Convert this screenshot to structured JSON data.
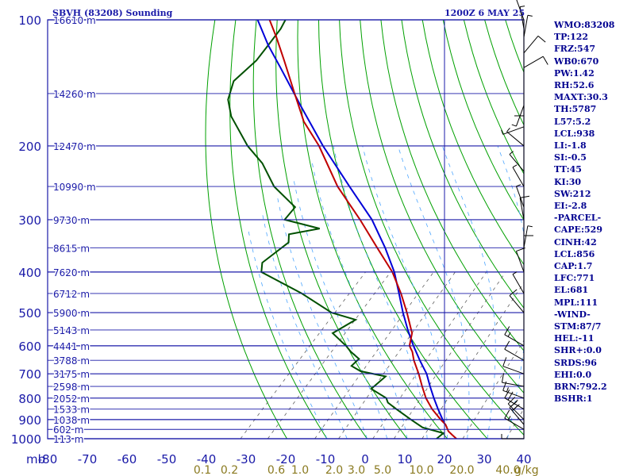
{
  "header": {
    "station": "SBVH (83208) Sounding",
    "time": "1200Z  6 MAY 25"
  },
  "colors": {
    "frame": "#1a1aa8",
    "isotherm": "#00a000",
    "temperature": "#c00000",
    "dewpoint": "#005000",
    "parcel": "#0000d8",
    "moist_adiabat": "#4da6ff",
    "mixing_ratio": "#606060",
    "axis_text": "#1a1aa8",
    "mixing_text": "#8a7a20",
    "index_text": "#000090"
  },
  "chart_data": {
    "type": "skew-t",
    "pressure_levels": [
      100,
      200,
      300,
      400,
      500,
      600,
      700,
      800,
      900,
      1000
    ],
    "pressure_unit_label": "mb",
    "temperature_ticks": [
      -80,
      -70,
      -60,
      -50,
      -40,
      -30,
      -20,
      -10,
      0,
      10,
      20,
      30,
      40
    ],
    "mixing_ratio_labels": [
      "0.1",
      "0.2",
      "0.6",
      "1.0",
      "2.0",
      "3.0",
      "5.0",
      "10.0",
      "20.0",
      "40.0"
    ],
    "mixing_ratio_unit": "g/kg",
    "height_labels": [
      {
        "p": 100,
        "text": "16610 m"
      },
      {
        "p": 150,
        "text": "14260 m"
      },
      {
        "p": 200,
        "text": "12470 m"
      },
      {
        "p": 250,
        "text": "10990 m"
      },
      {
        "p": 300,
        "text": "9730 m"
      },
      {
        "p": 350,
        "text": "8615 m"
      },
      {
        "p": 400,
        "text": "7620 m"
      },
      {
        "p": 450,
        "text": "6712 m"
      },
      {
        "p": 500,
        "text": "5900 m"
      },
      {
        "p": 550,
        "text": "5143 m"
      },
      {
        "p": 600,
        "text": "4441 m"
      },
      {
        "p": 650,
        "text": "3788 m"
      },
      {
        "p": 700,
        "text": "3175 m"
      },
      {
        "p": 750,
        "text": "2598 m"
      },
      {
        "p": 800,
        "text": "2052 m"
      },
      {
        "p": 850,
        "text": "1533 m"
      },
      {
        "p": 900,
        "text": "1038 m"
      },
      {
        "p": 950,
        "text": "602 m"
      },
      {
        "p": 1000,
        "text": "113 m"
      }
    ],
    "temperature_profile": [
      [
        1000,
        23
      ],
      [
        980,
        21.5
      ],
      [
        960,
        20
      ],
      [
        925,
        18.4
      ],
      [
        900,
        16.5
      ],
      [
        850,
        13
      ],
      [
        800,
        10
      ],
      [
        750,
        7.5
      ],
      [
        700,
        5
      ],
      [
        650,
        2
      ],
      [
        620,
        0.5
      ],
      [
        600,
        -1
      ],
      [
        560,
        -2
      ],
      [
        500,
        -6
      ],
      [
        450,
        -10
      ],
      [
        400,
        -15
      ],
      [
        350,
        -22
      ],
      [
        300,
        -30
      ],
      [
        250,
        -40
      ],
      [
        200,
        -50
      ],
      [
        175,
        -57
      ],
      [
        150,
        -63
      ],
      [
        125,
        -70
      ],
      [
        110,
        -75
      ],
      [
        100,
        -79
      ]
    ],
    "dewpoint_profile": [
      [
        1000,
        18
      ],
      [
        970,
        19
      ],
      [
        940,
        13
      ],
      [
        900,
        9
      ],
      [
        850,
        4
      ],
      [
        820,
        1
      ],
      [
        800,
        0
      ],
      [
        760,
        -5
      ],
      [
        710,
        -3
      ],
      [
        690,
        -10
      ],
      [
        670,
        -13
      ],
      [
        645,
        -12
      ],
      [
        620,
        -15
      ],
      [
        600,
        -17
      ],
      [
        560,
        -22
      ],
      [
        520,
        -18
      ],
      [
        500,
        -25
      ],
      [
        450,
        -35
      ],
      [
        400,
        -48
      ],
      [
        380,
        -49
      ],
      [
        340,
        -45
      ],
      [
        325,
        -46
      ],
      [
        315,
        -39
      ],
      [
        300,
        -49
      ],
      [
        280,
        -48
      ],
      [
        250,
        -56
      ],
      [
        220,
        -62
      ],
      [
        200,
        -68
      ],
      [
        170,
        -76
      ],
      [
        155,
        -79
      ],
      [
        140,
        -80
      ],
      [
        125,
        -77
      ],
      [
        115,
        -76
      ],
      [
        105,
        -75
      ],
      [
        100,
        -75
      ]
    ],
    "parcel_profile": [
      [
        920,
        18
      ],
      [
        900,
        17
      ],
      [
        850,
        14.5
      ],
      [
        800,
        12
      ],
      [
        750,
        9.5
      ],
      [
        700,
        7
      ],
      [
        650,
        3.5
      ],
      [
        600,
        0
      ],
      [
        550,
        -3.5
      ],
      [
        500,
        -7
      ],
      [
        450,
        -10.5
      ],
      [
        400,
        -14.5
      ],
      [
        350,
        -20
      ],
      [
        300,
        -27
      ],
      [
        250,
        -37
      ],
      [
        200,
        -49
      ],
      [
        160,
        -60
      ],
      [
        130,
        -70
      ],
      [
        115,
        -76
      ],
      [
        100,
        -82
      ]
    ],
    "wind_barbs": [
      {
        "p": 1000,
        "dir": 270,
        "spd": 5
      },
      {
        "p": 950,
        "dir": 300,
        "spd": 15
      },
      {
        "p": 925,
        "dir": 320,
        "spd": 20
      },
      {
        "p": 900,
        "dir": 315,
        "spd": 25
      },
      {
        "p": 850,
        "dir": 300,
        "spd": 20
      },
      {
        "p": 800,
        "dir": 290,
        "spd": 15
      },
      {
        "p": 750,
        "dir": 280,
        "spd": 10
      },
      {
        "p": 700,
        "dir": 290,
        "spd": 10
      },
      {
        "p": 650,
        "dir": 300,
        "spd": 10
      },
      {
        "p": 600,
        "dir": 300,
        "spd": 15
      },
      {
        "p": 500,
        "dir": 320,
        "spd": 10
      },
      {
        "p": 450,
        "dir": 330,
        "spd": 5
      },
      {
        "p": 400,
        "dir": 340,
        "spd": 10
      },
      {
        "p": 370,
        "dir": 0,
        "spd": 10
      },
      {
        "p": 350,
        "dir": 10,
        "spd": 5
      },
      {
        "p": 300,
        "dir": 350,
        "spd": 10
      },
      {
        "p": 280,
        "dir": 340,
        "spd": 5
      },
      {
        "p": 250,
        "dir": 330,
        "spd": 5
      },
      {
        "p": 230,
        "dir": 320,
        "spd": 5
      },
      {
        "p": 200,
        "dir": 310,
        "spd": 5
      },
      {
        "p": 180,
        "dir": 250,
        "spd": 5
      },
      {
        "p": 160,
        "dir": 200,
        "spd": 5
      },
      {
        "p": 150,
        "dir": 180,
        "spd": 10
      },
      {
        "p": 130,
        "dir": 60,
        "spd": 10
      },
      {
        "p": 120,
        "dir": 40,
        "spd": 10
      },
      {
        "p": 110,
        "dir": 10,
        "spd": 5
      },
      {
        "p": 105,
        "dir": 350,
        "spd": 5
      },
      {
        "p": 100,
        "dir": 340,
        "spd": 5
      }
    ]
  },
  "indices": [
    "WMO:83208",
    "TP:122",
    "FRZ:547",
    "WB0:670",
    "PW:1.42",
    "RH:52.6",
    "MAXT:30.3",
    "TH:5787",
    "L57:5.2",
    "LCL:938",
    "LI:-1.8",
    "SI:-0.5",
    "TT:45",
    "KI:30",
    "SW:212",
    "EI:-2.8",
    "-PARCEL-",
    "CAPE:529",
    "CINH:42",
    "LCL:856",
    "CAP:1.7",
    "LFC:771",
    "EL:681",
    "MPL:111",
    "-WIND-",
    "STM:87/7",
    "HEL:-11",
    "SHR+:0.0",
    "SRDS:96",
    "EHI:0.0",
    "BRN:792.2",
    "BSHR:1"
  ]
}
